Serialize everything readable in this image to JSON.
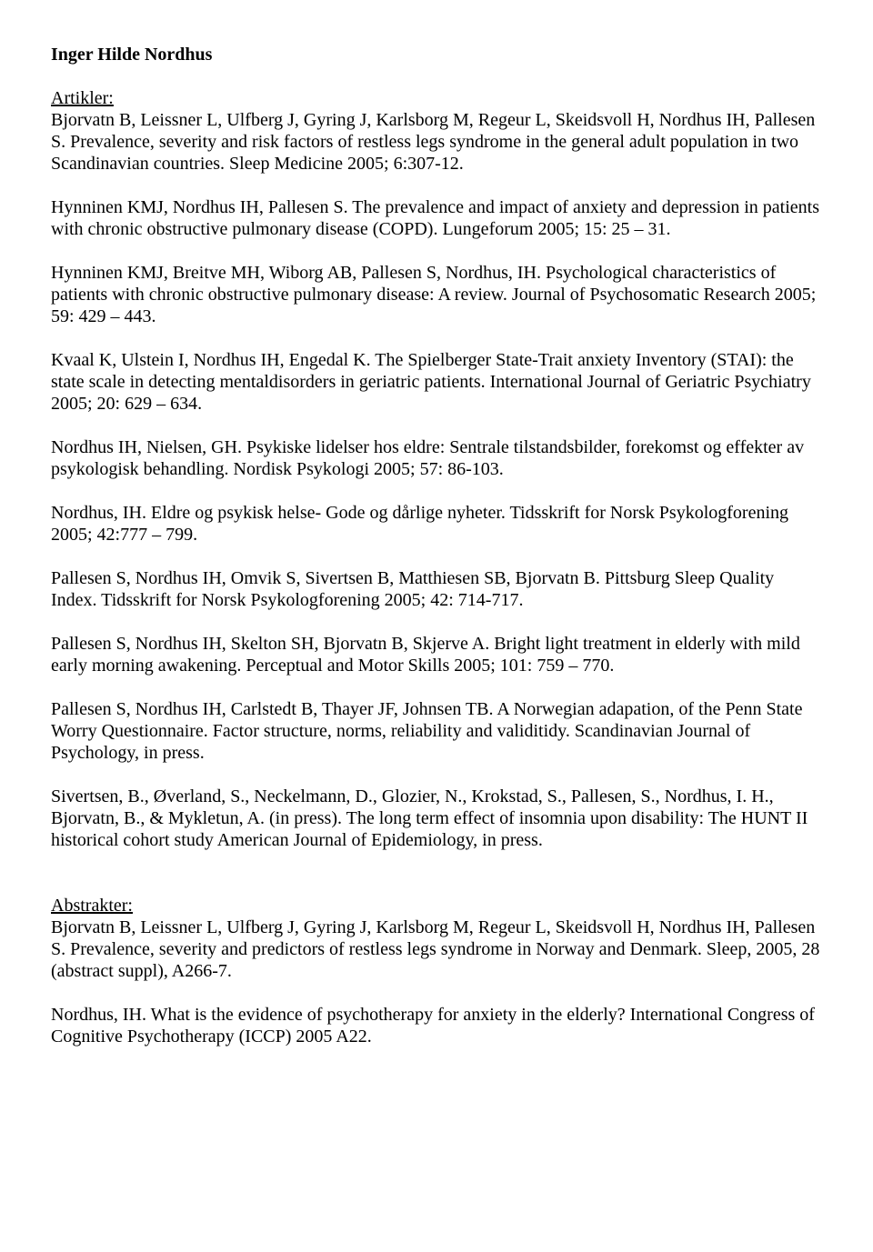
{
  "page": {
    "background_color": "#ffffff",
    "text_color": "#000000",
    "font_family": "Times New Roman",
    "base_font_size_pt": 15
  },
  "title": "Inger Hilde Nordhus",
  "sections": [
    {
      "heading": "Artikler:",
      "entries": [
        "Bjorvatn B, Leissner L, Ulfberg J, Gyring J, Karlsborg M, Regeur L, Skeidsvoll H, Nordhus IH, Pallesen S. Prevalence, severity and risk factors of restless legs syndrome in the general adult population in two Scandinavian countries. Sleep Medicine 2005; 6:307-12.",
        "Hynninen KMJ, Nordhus IH, Pallesen S. The prevalence and impact of anxiety and depression in patients with chronic obstructive pulmonary disease (COPD). Lungeforum 2005; 15: 25 – 31.",
        "Hynninen KMJ, Breitve MH, Wiborg AB, Pallesen S, Nordhus, IH. Psychological characteristics of patients with chronic obstructive pulmonary disease: A review. Journal of Psychosomatic Research 2005; 59: 429 – 443.",
        "Kvaal K, Ulstein I, Nordhus IH, Engedal K. The Spielberger State-Trait anxiety Inventory (STAI): the state scale in detecting mentaldisorders in geriatric patients. International Journal of Geriatric Psychiatry 2005; 20: 629 – 634.",
        "Nordhus IH, Nielsen, GH. Psykiske lidelser hos eldre: Sentrale tilstandsbilder, forekomst og effekter av psykologisk behandling. Nordisk Psykologi 2005; 57: 86-103.",
        "Nordhus, IH. Eldre og psykisk helse- Gode og dårlige nyheter. Tidsskrift for Norsk Psykologforening 2005; 42:777 – 799.",
        "Pallesen S, Nordhus IH, Omvik S, Sivertsen B, Matthiesen SB, Bjorvatn B. Pittsburg Sleep Quality Index. Tidsskrift for Norsk Psykologforening 2005; 42: 714-717.",
        "Pallesen S, Nordhus IH, Skelton SH, Bjorvatn B, Skjerve A. Bright light treatment in elderly with mild early morning awakening. Perceptual and Motor Skills 2005; 101: 759 – 770.",
        "Pallesen S, Nordhus IH, Carlstedt B, Thayer JF, Johnsen TB. A Norwegian adapation, of the Penn State Worry Questionnaire. Factor structure, norms, reliability and validitidy. Scandinavian Journal of Psychology, in press.",
        "Sivertsen, B., Øverland, S., Neckelmann, D., Glozier, N., Krokstad, S., Pallesen, S., Nordhus, I. H., Bjorvatn, B., & Mykletun, A. (in press). The long term effect of insomnia upon disability: The HUNT II historical cohort study  American Journal of Epidemiology, in press."
      ]
    },
    {
      "heading": "Abstrakter:",
      "entries": [
        "Bjorvatn B, Leissner L, Ulfberg J, Gyring J, Karlsborg M, Regeur L, Skeidsvoll H, Nordhus IH, Pallesen S. Prevalence, severity and predictors of restless legs syndrome in Norway and Denmark. Sleep, 2005, 28 (abstract suppl), A266-7.",
        "Nordhus, IH. What is the evidence of psychotherapy for anxiety in the elderly? International Congress of Cognitive Psychotherapy (ICCP) 2005 A22."
      ]
    }
  ]
}
